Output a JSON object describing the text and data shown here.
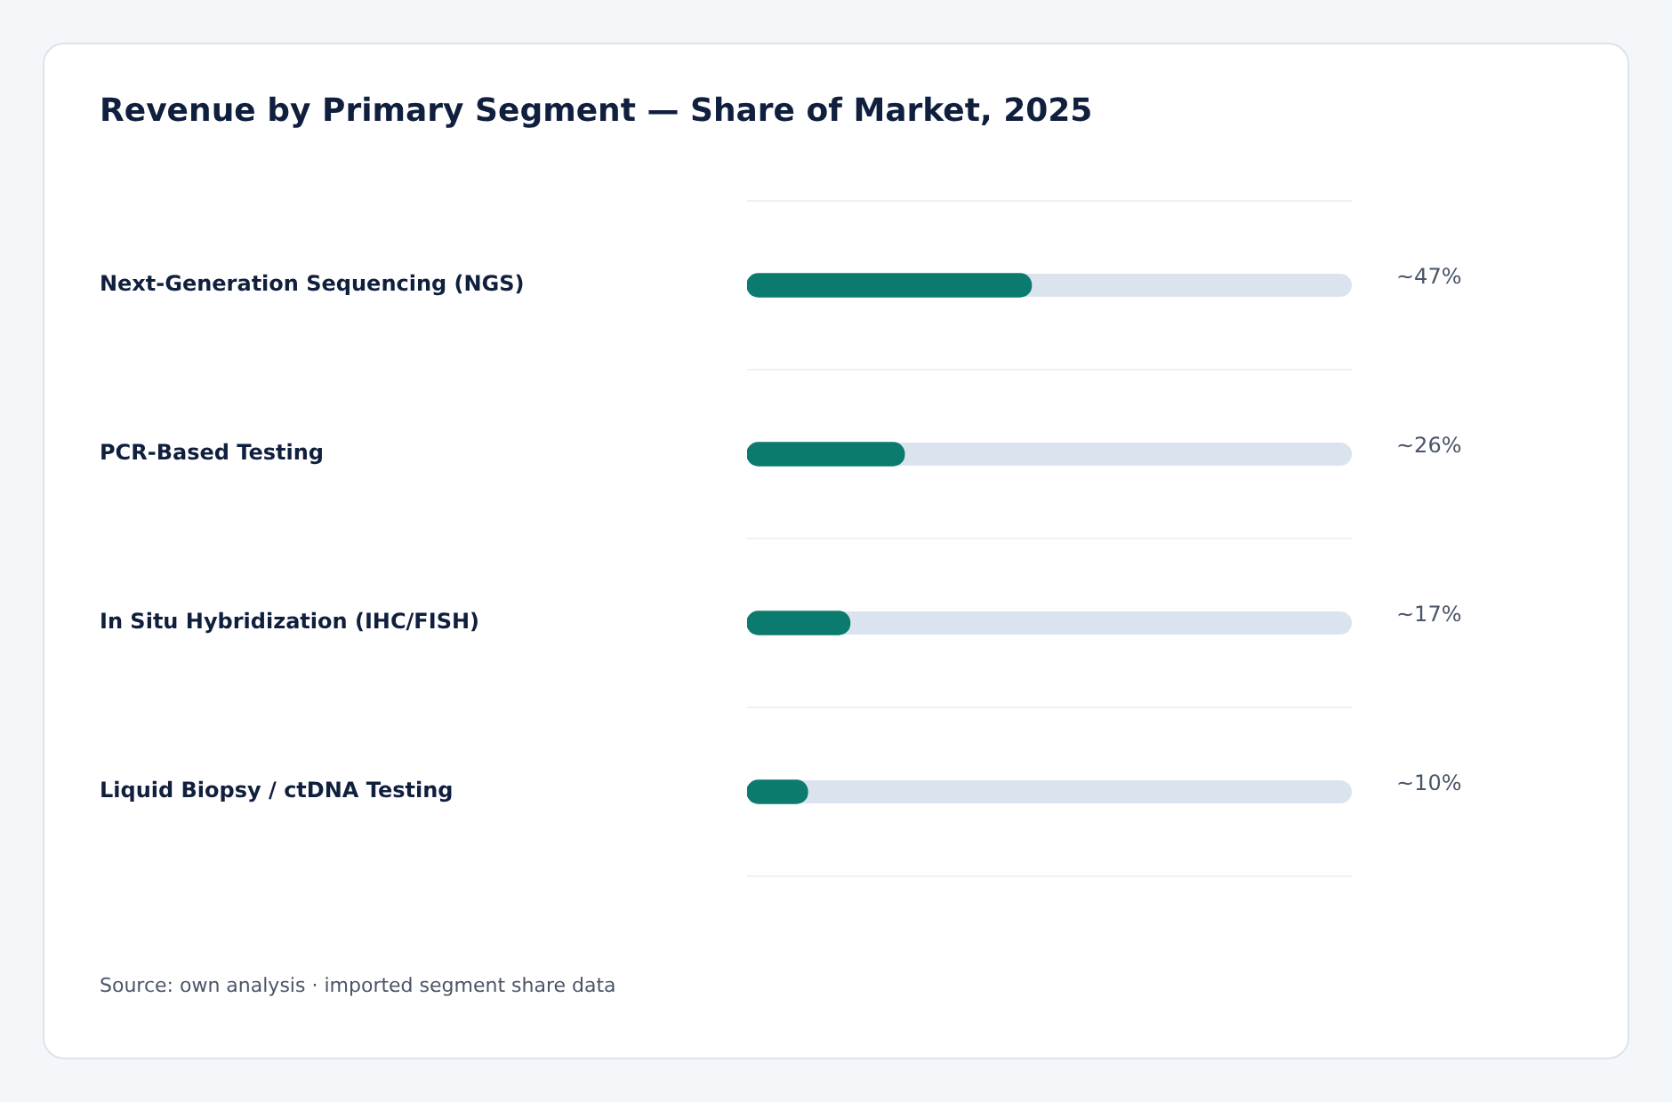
{
  "chart_data": {
    "type": "bar",
    "orientation": "horizontal",
    "title": "Revenue by Primary Segment — Share of Market, 2025",
    "categories": [
      "Next-Generation Sequencing (NGS)",
      "PCR-Based Testing",
      "In Situ Hybridization (IHC/FISH)",
      "Liquid Biopsy / ctDNA Testing"
    ],
    "values": [
      47,
      26,
      17,
      10
    ],
    "value_labels": [
      "~47%",
      "~26%",
      "~17%",
      "~10%"
    ],
    "color": "#0b7a6f",
    "xlim": [
      0,
      100
    ],
    "tick_labels": "y",
    "grid": "y",
    "legend": false,
    "annotations": [
      "Source: own analysis · imported segment share data"
    ]
  }
}
